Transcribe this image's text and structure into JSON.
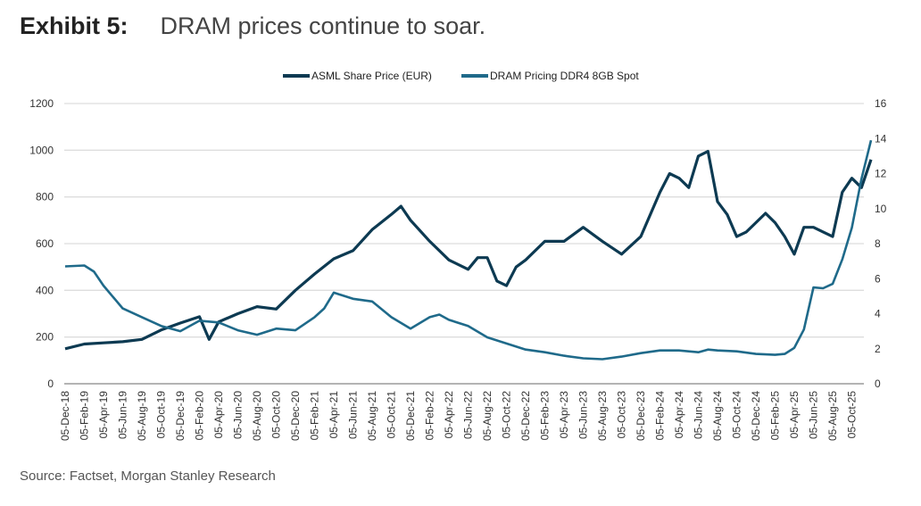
{
  "title": {
    "exhibit": "Exhibit 5:",
    "text": "DRAM prices continue to soar."
  },
  "source": "Source: Factset, Morgan Stanley Research",
  "colors": {
    "asml": "#0d3a52",
    "dram": "#1f6a8a",
    "grid": "#dddddd"
  },
  "chart_data": {
    "type": "line",
    "title": "",
    "legend_position": "top",
    "grid": true,
    "y_left": {
      "label": "",
      "lim": [
        0,
        1200
      ],
      "ticks": [
        "0",
        "200",
        "400",
        "600",
        "800",
        "1000",
        "1200"
      ]
    },
    "y_right": {
      "label": "",
      "lim": [
        0,
        16
      ],
      "ticks": [
        "0",
        "2",
        "4",
        "6",
        "8",
        "10",
        "12",
        "14",
        "16"
      ]
    },
    "x_ticks": [
      "05-Dec-18",
      "05-Feb-19",
      "05-Apr-19",
      "05-Jun-19",
      "05-Aug-19",
      "05-Oct-19",
      "05-Dec-19",
      "05-Feb-20",
      "05-Apr-20",
      "05-Jun-20",
      "05-Aug-20",
      "05-Oct-20",
      "05-Dec-20",
      "05-Feb-21",
      "05-Apr-21",
      "05-Jun-21",
      "05-Aug-21",
      "05-Oct-21",
      "05-Dec-21",
      "05-Feb-22",
      "05-Apr-22",
      "05-Jun-22",
      "05-Aug-22",
      "05-Oct-22",
      "05-Dec-22",
      "05-Feb-23",
      "05-Apr-23",
      "05-Jun-23",
      "05-Aug-23",
      "05-Oct-23",
      "05-Dec-23",
      "05-Feb-24",
      "05-Apr-24",
      "05-Jun-24",
      "05-Aug-24",
      "05-Oct-24",
      "05-Dec-24",
      "05-Feb-25",
      "05-Apr-25",
      "05-Jun-25",
      "05-Aug-25",
      "05-Oct-25"
    ],
    "series": [
      {
        "name": "ASML Share Price (EUR)",
        "axis": "left",
        "x": [
          "2018-12",
          "2019-02",
          "2019-04",
          "2019-06",
          "2019-08",
          "2019-10",
          "2019-12",
          "2020-02",
          "2020-03",
          "2020-04",
          "2020-06",
          "2020-08",
          "2020-10",
          "2020-12",
          "2021-02",
          "2021-04",
          "2021-06",
          "2021-08",
          "2021-10",
          "2021-11",
          "2021-12",
          "2022-02",
          "2022-04",
          "2022-06",
          "2022-07",
          "2022-08",
          "2022-09",
          "2022-10",
          "2022-11",
          "2022-12",
          "2023-02",
          "2023-04",
          "2023-06",
          "2023-08",
          "2023-10",
          "2023-12",
          "2024-02",
          "2024-03",
          "2024-04",
          "2024-05",
          "2024-06",
          "2024-07",
          "2024-08",
          "2024-09",
          "2024-10",
          "2024-11",
          "2024-12",
          "2025-01",
          "2025-02",
          "2025-03",
          "2025-04",
          "2025-05",
          "2025-06",
          "2025-07",
          "2025-08",
          "2025-09",
          "2025-10",
          "2025-11",
          "2025-12"
        ],
        "values": [
          150,
          170,
          175,
          180,
          190,
          230,
          260,
          287,
          190,
          265,
          300,
          330,
          320,
          400,
          470,
          535,
          570,
          660,
          725,
          760,
          700,
          610,
          530,
          490,
          540,
          540,
          440,
          420,
          500,
          530,
          610,
          610,
          670,
          610,
          555,
          630,
          820,
          900,
          880,
          840,
          975,
          995,
          780,
          725,
          630,
          650,
          690,
          730,
          690,
          630,
          555,
          670,
          670,
          650,
          630,
          820,
          880,
          840,
          960
        ]
      },
      {
        "name": "DRAM Pricing DDR4 8GB Spot",
        "axis": "right",
        "x": [
          "2018-12",
          "2019-02",
          "2019-03",
          "2019-04",
          "2019-06",
          "2019-08",
          "2019-10",
          "2019-12",
          "2020-02",
          "2020-04",
          "2020-06",
          "2020-08",
          "2020-10",
          "2020-12",
          "2021-02",
          "2021-03",
          "2021-04",
          "2021-06",
          "2021-08",
          "2021-10",
          "2021-12",
          "2022-02",
          "2022-03",
          "2022-04",
          "2022-06",
          "2022-08",
          "2022-10",
          "2022-12",
          "2023-02",
          "2023-04",
          "2023-06",
          "2023-08",
          "2023-10",
          "2023-12",
          "2024-02",
          "2024-04",
          "2024-06",
          "2024-07",
          "2024-08",
          "2024-10",
          "2024-12",
          "2025-02",
          "2025-03",
          "2025-04",
          "2025-05",
          "2025-06",
          "2025-07",
          "2025-08",
          "2025-09",
          "2025-10",
          "2025-11",
          "2025-12"
        ],
        "values": [
          6.7,
          6.75,
          6.4,
          5.6,
          4.3,
          3.8,
          3.3,
          3.0,
          3.6,
          3.5,
          3.05,
          2.8,
          3.15,
          3.05,
          3.8,
          4.3,
          5.2,
          4.85,
          4.7,
          3.8,
          3.15,
          3.8,
          3.95,
          3.65,
          3.3,
          2.65,
          2.3,
          1.95,
          1.8,
          1.6,
          1.45,
          1.4,
          1.55,
          1.75,
          1.9,
          1.9,
          1.8,
          1.95,
          1.9,
          1.85,
          1.7,
          1.65,
          1.7,
          2.05,
          3.1,
          5.5,
          5.45,
          5.7,
          7.1,
          8.9,
          11.7,
          13.9
        ]
      }
    ]
  }
}
